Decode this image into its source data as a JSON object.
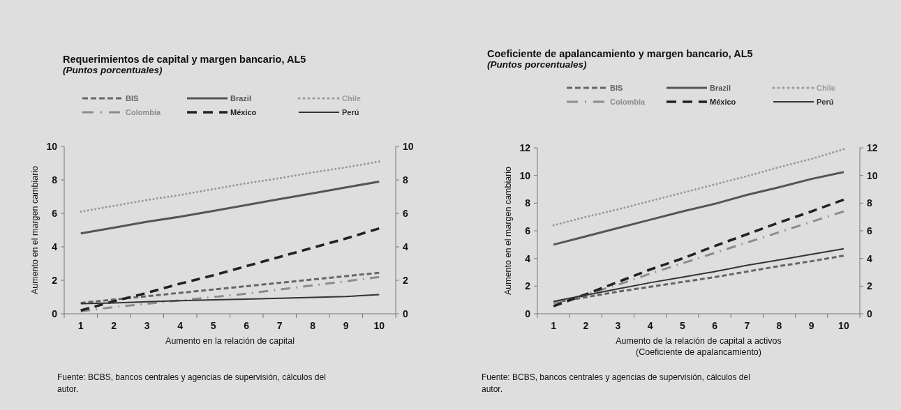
{
  "chart_data": [
    {
      "type": "line",
      "title": "Requerimientos de capital y margen bancario, AL5",
      "subtitle": "(Puntos porcentuales)",
      "xlabel": "Aumento en la relación de capital",
      "ylabel": "Aumento en el margen cambiario",
      "categories": [
        "1",
        "2",
        "3",
        "4",
        "5",
        "6",
        "7",
        "8",
        "9",
        "10"
      ],
      "ylim": [
        0,
        10
      ],
      "yticks": [
        0,
        2,
        4,
        6,
        8,
        10
      ],
      "y2lim": [
        0,
        10
      ],
      "y2ticks": [
        0,
        2,
        4,
        6,
        8,
        10
      ],
      "legend": "top",
      "grid": false,
      "marker": "none",
      "series": [
        {
          "name": "BIS",
          "color": "#666666",
          "line_style": "dashed",
          "values": [
            0.65,
            0.85,
            1.05,
            1.25,
            1.45,
            1.65,
            1.85,
            2.05,
            2.25,
            2.45
          ]
        },
        {
          "name": "Brazil",
          "color": "#555555",
          "line_style": "solid",
          "values": [
            4.8,
            5.15,
            5.5,
            5.8,
            6.15,
            6.5,
            6.85,
            7.2,
            7.55,
            7.9
          ]
        },
        {
          "name": "Chile",
          "color": "#999999",
          "line_style": "dotted",
          "values": [
            6.1,
            6.45,
            6.8,
            7.1,
            7.45,
            7.8,
            8.1,
            8.45,
            8.75,
            9.1
          ]
        },
        {
          "name": "Colombia",
          "color": "#8c8c8c",
          "line_style": "dashdot",
          "values": [
            0.15,
            0.4,
            0.6,
            0.8,
            1.0,
            1.2,
            1.45,
            1.7,
            1.95,
            2.2
          ]
        },
        {
          "name": "México",
          "color": "#222222",
          "line_style": "dashed",
          "values": [
            0.2,
            0.75,
            1.25,
            1.8,
            2.3,
            2.85,
            3.4,
            3.95,
            4.5,
            5.1
          ]
        },
        {
          "name": "Perú",
          "color": "#333333",
          "line_style": "solid",
          "values": [
            0.6,
            0.65,
            0.72,
            0.78,
            0.83,
            0.88,
            0.93,
            0.98,
            1.03,
            1.15
          ]
        }
      ],
      "annotations": [
        "Fuente: BCBS, bancos centrales y agencias de supervisión, cálculos del autor."
      ]
    },
    {
      "type": "line",
      "title": "Coeficiente de apalancamiento y margen bancario, AL5",
      "subtitle": "(Puntos porcentuales)",
      "xlabel": "Aumento de la relación de capital a activos\n(Coeficiente de apalancamiento)",
      "ylabel": "Aumento en el margen cambiario",
      "categories": [
        "1",
        "2",
        "3",
        "4",
        "5",
        "6",
        "7",
        "8",
        "9",
        "10"
      ],
      "ylim": [
        0,
        12
      ],
      "yticks": [
        0,
        2,
        4,
        6,
        8,
        10,
        12
      ],
      "y2lim": [
        0,
        12
      ],
      "y2ticks": [
        0,
        2,
        4,
        6,
        8,
        10,
        12
      ],
      "legend": "top",
      "grid": false,
      "marker": "none",
      "series": [
        {
          "name": "BIS",
          "color": "#666666",
          "line_style": "dashed",
          "values": [
            0.8,
            1.2,
            1.6,
            1.95,
            2.3,
            2.65,
            3.05,
            3.45,
            3.8,
            4.2
          ]
        },
        {
          "name": "Brazil",
          "color": "#555555",
          "line_style": "solid",
          "values": [
            5.0,
            5.6,
            6.2,
            6.8,
            7.4,
            7.95,
            8.6,
            9.15,
            9.75,
            10.25
          ]
        },
        {
          "name": "Chile",
          "color": "#999999",
          "line_style": "dotted",
          "values": [
            6.4,
            7.0,
            7.55,
            8.15,
            8.75,
            9.35,
            9.95,
            10.6,
            11.2,
            11.9
          ]
        },
        {
          "name": "Colombia",
          "color": "#8c8c8c",
          "line_style": "dashdot",
          "values": [
            0.75,
            1.4,
            2.1,
            2.9,
            3.65,
            4.4,
            5.15,
            5.9,
            6.65,
            7.4
          ]
        },
        {
          "name": "México",
          "color": "#222222",
          "line_style": "dashed",
          "values": [
            0.55,
            1.4,
            2.3,
            3.2,
            4.0,
            4.9,
            5.75,
            6.6,
            7.4,
            8.25
          ]
        },
        {
          "name": "Perú",
          "color": "#333333",
          "line_style": "solid",
          "values": [
            0.9,
            1.35,
            1.8,
            2.25,
            2.65,
            3.05,
            3.5,
            3.9,
            4.3,
            4.7
          ]
        }
      ],
      "annotations": [
        "Fuente: BCBS, bancos centrales y agencias de supervisión, cálculos del autor."
      ]
    }
  ]
}
